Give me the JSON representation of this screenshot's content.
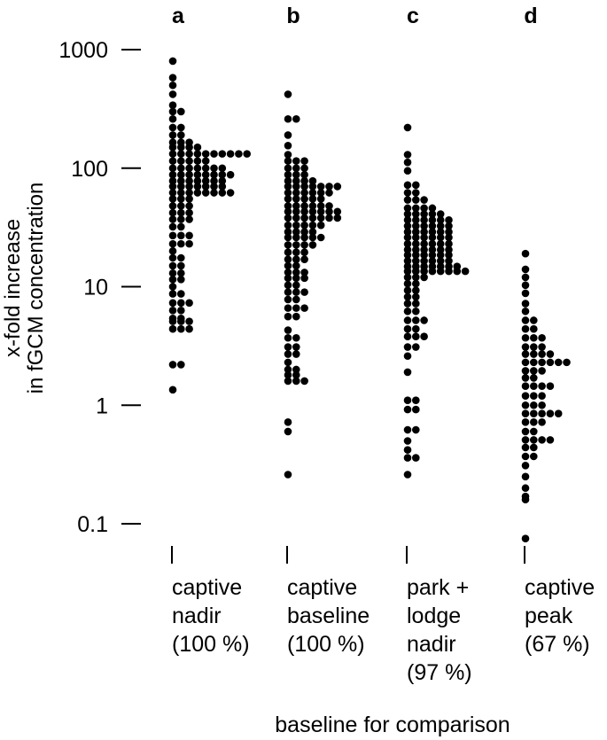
{
  "chart_data": {
    "type": "scatter",
    "title": "",
    "ylabel_lines": [
      "x-fold increase",
      "in fGCM concentration"
    ],
    "xlabel": "baseline for comparison",
    "y_scale": "log",
    "ylim": [
      0.1,
      1000
    ],
    "y_ticks": [
      1000,
      100,
      10,
      1,
      0.1
    ],
    "y_tick_labels": [
      "1000",
      "100",
      "10",
      "1",
      "0.1"
    ],
    "grid": false,
    "legend": "none",
    "panels": [
      {
        "letter": "a",
        "label_lines": [
          "captive",
          "nadir",
          "(100 %)"
        ],
        "rows": [
          {
            "y": 800,
            "n": 1
          },
          {
            "y": 580,
            "n": 1
          },
          {
            "y": 500,
            "n": 1
          },
          {
            "y": 420,
            "n": 1
          },
          {
            "y": 340,
            "n": 1
          },
          {
            "y": 300,
            "n": 2
          },
          {
            "y": 260,
            "n": 1
          },
          {
            "y": 220,
            "n": 2
          },
          {
            "y": 190,
            "n": 2
          },
          {
            "y": 165,
            "n": 3
          },
          {
            "y": 150,
            "n": 4
          },
          {
            "y": 132,
            "n": 10
          },
          {
            "y": 115,
            "n": 5
          },
          {
            "y": 100,
            "n": 7
          },
          {
            "y": 88,
            "n": 8
          },
          {
            "y": 78,
            "n": 7
          },
          {
            "y": 70,
            "n": 7
          },
          {
            "y": 62,
            "n": 8
          },
          {
            "y": 55,
            "n": 3
          },
          {
            "y": 48,
            "n": 3
          },
          {
            "y": 42,
            "n": 3
          },
          {
            "y": 37,
            "n": 3
          },
          {
            "y": 32,
            "n": 2
          },
          {
            "y": 27,
            "n": 3
          },
          {
            "y": 23,
            "n": 3
          },
          {
            "y": 20,
            "n": 1
          },
          {
            "y": 17.5,
            "n": 2
          },
          {
            "y": 15,
            "n": 2
          },
          {
            "y": 13,
            "n": 2
          },
          {
            "y": 11.5,
            "n": 2
          },
          {
            "y": 10,
            "n": 1
          },
          {
            "y": 8.7,
            "n": 2
          },
          {
            "y": 7.3,
            "n": 3
          },
          {
            "y": 6.3,
            "n": 2
          },
          {
            "y": 5.4,
            "n": 2
          },
          {
            "y": 5.1,
            "n": 3
          },
          {
            "y": 4.4,
            "n": 3
          },
          {
            "y": 2.2,
            "n": 2
          },
          {
            "y": 1.35,
            "n": 1
          }
        ]
      },
      {
        "letter": "b",
        "label_lines": [
          "captive",
          "baseline",
          "(100 %)"
        ],
        "rows": [
          {
            "y": 420,
            "n": 1
          },
          {
            "y": 260,
            "n": 2
          },
          {
            "y": 190,
            "n": 1
          },
          {
            "y": 155,
            "n": 1
          },
          {
            "y": 130,
            "n": 1
          },
          {
            "y": 115,
            "n": 3
          },
          {
            "y": 100,
            "n": 3
          },
          {
            "y": 88,
            "n": 3
          },
          {
            "y": 78,
            "n": 4
          },
          {
            "y": 70,
            "n": 7
          },
          {
            "y": 62,
            "n": 6
          },
          {
            "y": 55,
            "n": 5
          },
          {
            "y": 48,
            "n": 6
          },
          {
            "y": 43,
            "n": 7
          },
          {
            "y": 38,
            "n": 7
          },
          {
            "y": 33,
            "n": 5
          },
          {
            "y": 29,
            "n": 4
          },
          {
            "y": 26,
            "n": 5
          },
          {
            "y": 22.5,
            "n": 4
          },
          {
            "y": 19.5,
            "n": 3
          },
          {
            "y": 17,
            "n": 3
          },
          {
            "y": 15,
            "n": 2
          },
          {
            "y": 13.2,
            "n": 3
          },
          {
            "y": 11.8,
            "n": 3
          },
          {
            "y": 10.3,
            "n": 2
          },
          {
            "y": 9,
            "n": 3
          },
          {
            "y": 7.8,
            "n": 2
          },
          {
            "y": 6.6,
            "n": 3
          },
          {
            "y": 5.6,
            "n": 2
          },
          {
            "y": 4.3,
            "n": 1
          },
          {
            "y": 3.7,
            "n": 2
          },
          {
            "y": 3.1,
            "n": 2
          },
          {
            "y": 2.7,
            "n": 2
          },
          {
            "y": 2.3,
            "n": 1
          },
          {
            "y": 2.0,
            "n": 2
          },
          {
            "y": 1.8,
            "n": 2
          },
          {
            "y": 1.6,
            "n": 3
          },
          {
            "y": 0.72,
            "n": 1
          },
          {
            "y": 0.6,
            "n": 1
          },
          {
            "y": 0.26,
            "n": 1
          }
        ]
      },
      {
        "letter": "c",
        "label_lines": [
          "park +",
          "lodge",
          "nadir",
          "(97 %)"
        ],
        "rows": [
          {
            "y": 220,
            "n": 1
          },
          {
            "y": 130,
            "n": 1
          },
          {
            "y": 112,
            "n": 1
          },
          {
            "y": 95,
            "n": 1
          },
          {
            "y": 72,
            "n": 2
          },
          {
            "y": 62,
            "n": 2
          },
          {
            "y": 54,
            "n": 3
          },
          {
            "y": 46,
            "n": 4
          },
          {
            "y": 41,
            "n": 5
          },
          {
            "y": 36.5,
            "n": 6
          },
          {
            "y": 32.5,
            "n": 6
          },
          {
            "y": 29,
            "n": 6
          },
          {
            "y": 26,
            "n": 6
          },
          {
            "y": 23,
            "n": 6
          },
          {
            "y": 20.5,
            "n": 6
          },
          {
            "y": 18.5,
            "n": 6
          },
          {
            "y": 16.5,
            "n": 6
          },
          {
            "y": 14.8,
            "n": 7
          },
          {
            "y": 13.5,
            "n": 8
          },
          {
            "y": 12,
            "n": 3
          },
          {
            "y": 10.6,
            "n": 2
          },
          {
            "y": 9.3,
            "n": 2
          },
          {
            "y": 8.2,
            "n": 2
          },
          {
            "y": 7.2,
            "n": 2
          },
          {
            "y": 6.2,
            "n": 2
          },
          {
            "y": 5.2,
            "n": 3
          },
          {
            "y": 4.4,
            "n": 2
          },
          {
            "y": 3.8,
            "n": 3
          },
          {
            "y": 3.1,
            "n": 2
          },
          {
            "y": 2.6,
            "n": 1
          },
          {
            "y": 1.9,
            "n": 1
          },
          {
            "y": 1.1,
            "n": 2
          },
          {
            "y": 0.92,
            "n": 2
          },
          {
            "y": 0.62,
            "n": 2
          },
          {
            "y": 0.5,
            "n": 1
          },
          {
            "y": 0.42,
            "n": 1
          },
          {
            "y": 0.36,
            "n": 2
          },
          {
            "y": 0.26,
            "n": 1
          }
        ]
      },
      {
        "letter": "d",
        "label_lines": [
          "captive",
          "peak",
          "(67 %)"
        ],
        "rows": [
          {
            "y": 19,
            "n": 1
          },
          {
            "y": 14,
            "n": 1
          },
          {
            "y": 12,
            "n": 1
          },
          {
            "y": 10.3,
            "n": 1
          },
          {
            "y": 8.8,
            "n": 1
          },
          {
            "y": 7.2,
            "n": 1
          },
          {
            "y": 6.2,
            "n": 1
          },
          {
            "y": 5.2,
            "n": 2
          },
          {
            "y": 4.4,
            "n": 2
          },
          {
            "y": 3.7,
            "n": 3
          },
          {
            "y": 3.1,
            "n": 3
          },
          {
            "y": 2.7,
            "n": 4
          },
          {
            "y": 2.3,
            "n": 6
          },
          {
            "y": 1.95,
            "n": 3
          },
          {
            "y": 1.7,
            "n": 2
          },
          {
            "y": 1.45,
            "n": 4
          },
          {
            "y": 1.2,
            "n": 3
          },
          {
            "y": 1.0,
            "n": 3
          },
          {
            "y": 0.85,
            "n": 5
          },
          {
            "y": 0.72,
            "n": 3
          },
          {
            "y": 0.6,
            "n": 2
          },
          {
            "y": 0.51,
            "n": 4
          },
          {
            "y": 0.44,
            "n": 2
          },
          {
            "y": 0.37,
            "n": 2
          },
          {
            "y": 0.31,
            "n": 1
          },
          {
            "y": 0.25,
            "n": 1
          },
          {
            "y": 0.2,
            "n": 1
          },
          {
            "y": 0.17,
            "n": 1
          },
          {
            "y": 0.16,
            "n": 1
          },
          {
            "y": 0.075,
            "n": 1
          }
        ]
      }
    ]
  }
}
